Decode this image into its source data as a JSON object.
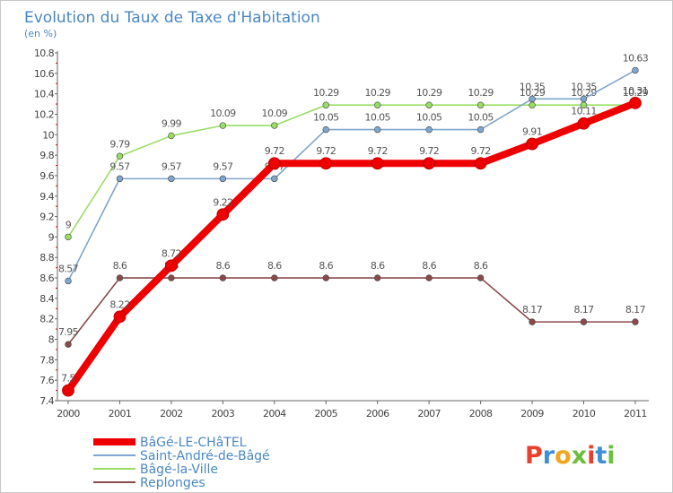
{
  "chart_data": {
    "type": "line",
    "title": "Evolution du Taux de Taxe d'Habitation",
    "subtitle": "(en %)",
    "xlabel": "",
    "ylabel": "",
    "x": [
      "2000",
      "2001",
      "2002",
      "2003",
      "2004",
      "2005",
      "2006",
      "2007",
      "2008",
      "2009",
      "2010",
      "2011"
    ],
    "ylim": [
      7.4,
      10.8
    ],
    "yticks": [
      "7.4",
      "7.6",
      "7.8",
      "8",
      "8.2",
      "8.4",
      "8.6",
      "8.8",
      "9",
      "9.2",
      "9.4",
      "9.6",
      "9.8",
      "10",
      "10.2",
      "10.4",
      "10.6",
      "10.8"
    ],
    "grid": false,
    "legend_position": "bottom-left",
    "series": [
      {
        "name": "BâGé-LE-CHâTEL",
        "color": "#ee0000",
        "values": [
          7.5,
          8.22,
          8.72,
          9.22,
          9.72,
          9.72,
          9.72,
          9.72,
          9.72,
          9.91,
          10.11,
          10.31
        ],
        "labels": [
          "7.5",
          "8.22",
          "8.72",
          "9.22",
          "9.72",
          "9.72",
          "9.72",
          "9.72",
          "9.72",
          "9.91",
          "10.11",
          "10.31"
        ]
      },
      {
        "name": "Saint-André-de-Bâgé",
        "color": "#7fa6cc",
        "values": [
          8.57,
          9.57,
          9.57,
          9.57,
          9.57,
          10.05,
          10.05,
          10.05,
          10.05,
          10.35,
          10.35,
          10.63
        ],
        "labels": [
          "8.57",
          "9.57",
          "9.57",
          "9.57",
          "9.57",
          "10.05",
          "10.05",
          "10.05",
          "10.05",
          "10.35",
          "10.35",
          "10.63"
        ]
      },
      {
        "name": "Bâgé-la-Ville",
        "color": "#99dd66",
        "values": [
          9.0,
          9.79,
          9.99,
          10.09,
          10.09,
          10.29,
          10.29,
          10.29,
          10.29,
          10.29,
          10.29,
          10.29
        ],
        "labels": [
          "9",
          "9.79",
          "9.99",
          "10.09",
          "10.09",
          "10.29",
          "10.29",
          "10.29",
          "10.29",
          "10.29",
          "10.29",
          "10.29"
        ]
      },
      {
        "name": "Replonges",
        "color": "#8a4a4a",
        "values": [
          7.95,
          8.6,
          8.6,
          8.6,
          8.6,
          8.6,
          8.6,
          8.6,
          8.6,
          8.17,
          8.17,
          8.17
        ],
        "labels": [
          "7.95",
          "8.6",
          "8.6",
          "8.6",
          "8.6",
          "8.6",
          "8.6",
          "8.6",
          "8.6",
          "8.17",
          "8.17",
          "8.17"
        ]
      }
    ]
  },
  "logo": {
    "text": "Proxiti",
    "colors": [
      "#e8402c",
      "#3d8fd6",
      "#f2a51a",
      "#6cbf3e",
      "#e8402c",
      "#3d8fd6",
      "#6cbf3e"
    ]
  }
}
